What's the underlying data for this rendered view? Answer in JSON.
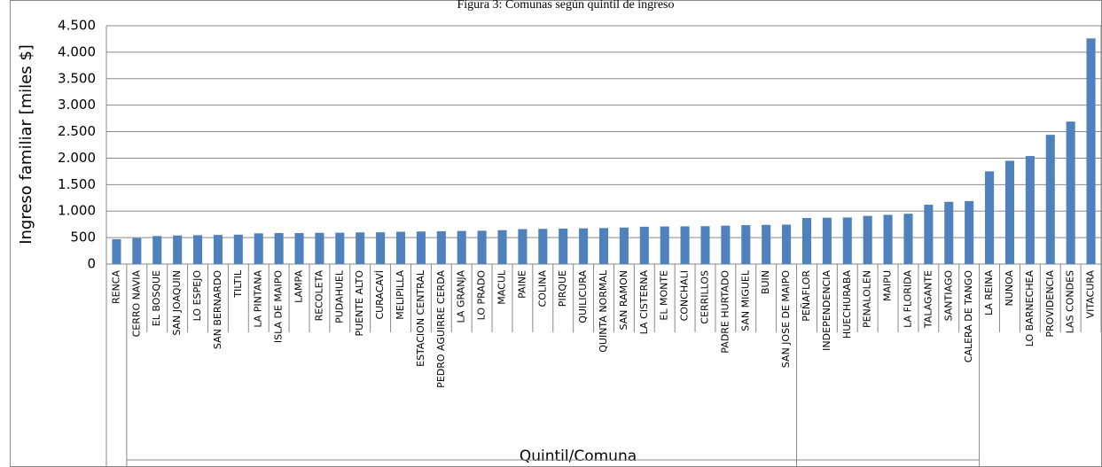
{
  "chart_data": {
    "type": "bar",
    "title": "Figura 3: Comunas según quintil de ingreso",
    "y_label": "Ingreso familiar [miles $]",
    "x_label": "Quintil/Comuna",
    "categories": [
      "RENCA",
      "CERRO NAVIA",
      "EL BOSQUE",
      "SAN JOAQUIN",
      "LO ESPEJO",
      "SAN BERNARDO",
      "TILTIL",
      "LA PINTANA",
      "ISLA DE MAIPO",
      "LAMPA",
      "RECOLETA",
      "PUDAHUEL",
      "PUENTE ALTO",
      "CURACAVÍ",
      "MELIPILLA",
      "ESTACION CENTRAL",
      "PEDRO AGUIRRE CERDA",
      "LA GRANJA",
      "LO PRADO",
      "MACUL",
      "PAINE",
      "COLINA",
      "PIRQUE",
      "QUILICURA",
      "QUINTA NORMAL",
      "SAN RAMON",
      "LA CISTERNA",
      "EL MONTE",
      "CONCHALI",
      "CERRILLOS",
      "PADRE HURTADO",
      "SAN MIGUEL",
      "BUIN",
      "SAN JOSE DE MAIPO",
      "PEÑAFLOR",
      "INDEPENDENCIA",
      "HUECHURABA",
      "PENALOLEN",
      "MAIPU",
      "LA FLORIDA",
      "TALAGANTE",
      "SANTIAGO",
      "CALERA DE TANGO",
      "LA REINA",
      "NUNOA",
      "LO BARNECHEA",
      "PROVIDENCIA",
      "LAS CONDES",
      "VITACURA"
    ],
    "values": [
      470,
      490,
      530,
      540,
      545,
      550,
      555,
      580,
      585,
      585,
      590,
      592,
      598,
      600,
      610,
      615,
      620,
      625,
      630,
      640,
      660,
      665,
      670,
      675,
      680,
      690,
      705,
      710,
      712,
      715,
      725,
      735,
      740,
      745,
      870,
      875,
      880,
      910,
      930,
      950,
      1120,
      1175,
      1190,
      1750,
      1950,
      2040,
      2440,
      2690,
      4260
    ],
    "color": "#4f81bd",
    "ylim": [
      0,
      4500
    ],
    "yticks": [
      0,
      500,
      {
        "value": 1000,
        "label": "1.000"
      },
      {
        "value": 1500,
        "label": "1.500"
      },
      {
        "value": 2000,
        "label": "2.000"
      },
      {
        "value": 2500,
        "label": "2.500"
      },
      {
        "value": 3000,
        "label": "3.000"
      },
      {
        "value": 3500,
        "label": "3.500"
      },
      {
        "value": 4000,
        "label": "4.000"
      },
      {
        "value": 4500,
        "label": "4.500"
      }
    ],
    "grid": true
  }
}
